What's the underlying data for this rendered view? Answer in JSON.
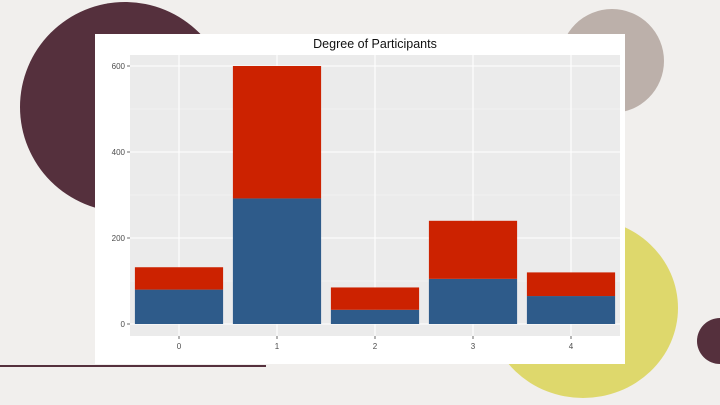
{
  "slide": {
    "colors": {
      "background": "#f1efed",
      "maroon": "#55303d",
      "taupe": "#bcb0aa",
      "yellow": "#ded86c"
    }
  },
  "chart_data": {
    "type": "bar",
    "stacked": true,
    "title": "Degree of Participants",
    "xlabel": "",
    "ylabel": "",
    "categories": [
      "0",
      "1",
      "2",
      "3",
      "4"
    ],
    "series": [
      {
        "values": [
          80,
          292,
          33,
          105,
          65
        ],
        "color": "#2e5b8a"
      },
      {
        "values": [
          52,
          308,
          52,
          135,
          55
        ],
        "color": "#cc2200"
      }
    ],
    "ylim": [
      0,
      600
    ],
    "yticks": [
      0,
      200,
      400,
      600
    ],
    "grid": true,
    "panel_color": "#ebebeb",
    "legend": "none"
  }
}
